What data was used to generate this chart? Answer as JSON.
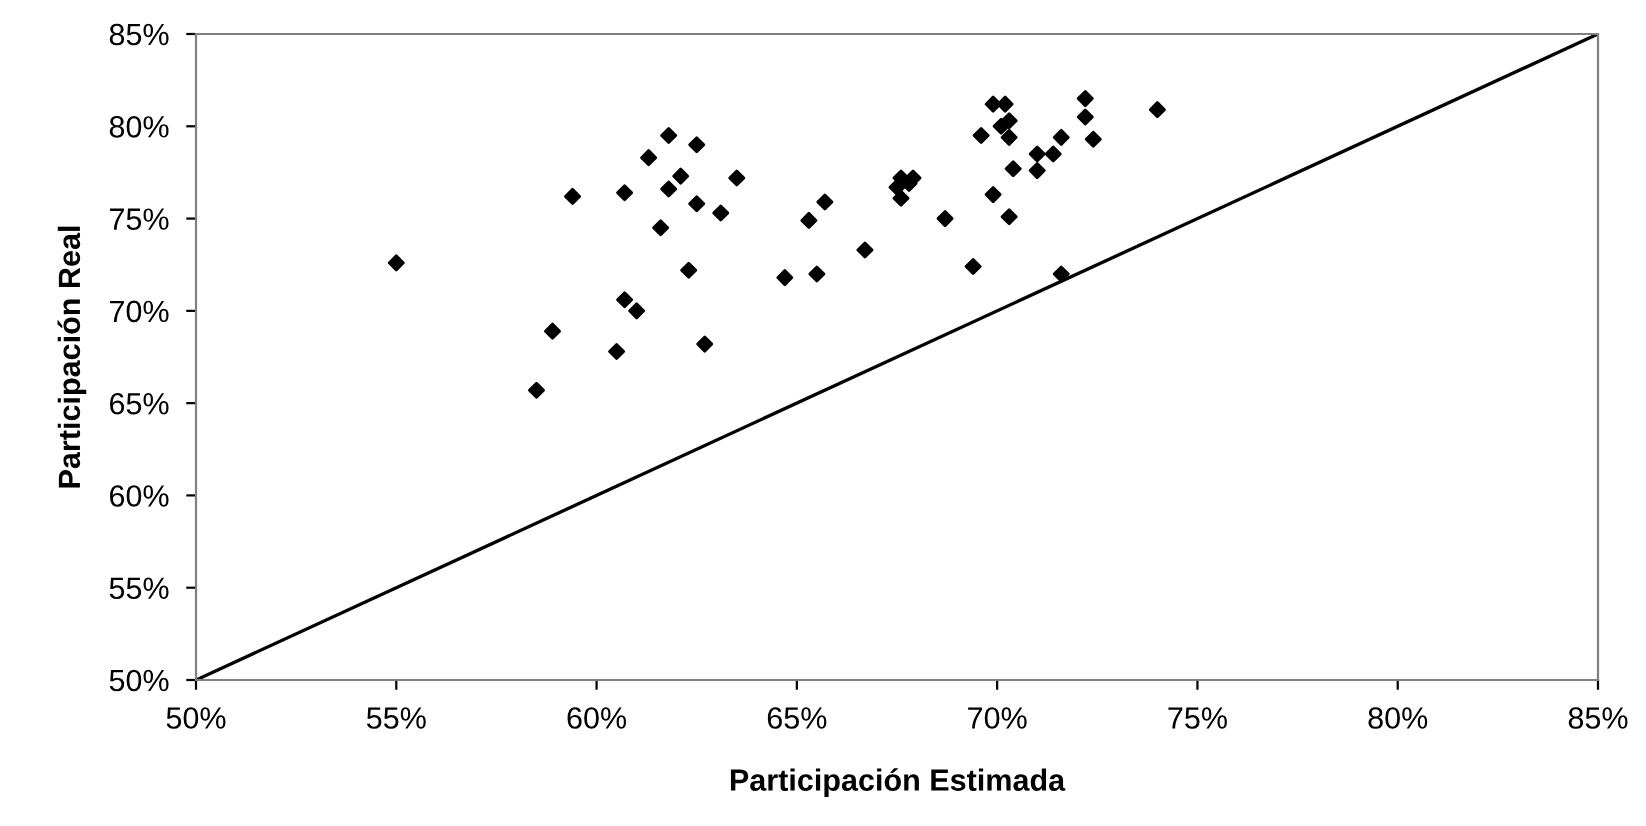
{
  "chart_data": {
    "type": "scatter",
    "xlabel": "Participación Estimada",
    "ylabel": "Participación Real",
    "xlim": [
      50,
      85
    ],
    "ylim": [
      50,
      85
    ],
    "xticks": [
      {
        "value": 50,
        "label": "50%"
      },
      {
        "value": 55,
        "label": "55%"
      },
      {
        "value": 60,
        "label": "60%"
      },
      {
        "value": 65,
        "label": "65%"
      },
      {
        "value": 70,
        "label": "70%"
      },
      {
        "value": 75,
        "label": "75%"
      },
      {
        "value": 80,
        "label": "80%"
      },
      {
        "value": 85,
        "label": "85%"
      }
    ],
    "yticks": [
      {
        "value": 50,
        "label": "50%"
      },
      {
        "value": 55,
        "label": "55%"
      },
      {
        "value": 60,
        "label": "60%"
      },
      {
        "value": 65,
        "label": "65%"
      },
      {
        "value": 70,
        "label": "70%"
      },
      {
        "value": 75,
        "label": "75%"
      },
      {
        "value": 80,
        "label": "80%"
      },
      {
        "value": 85,
        "label": "85%"
      }
    ],
    "grid": false,
    "marker": "diamond",
    "series": [
      {
        "color": "#000000",
        "x": [
          55.0,
          58.5,
          58.9,
          59.4,
          60.5,
          60.7,
          60.7,
          61.0,
          61.3,
          61.6,
          61.8,
          61.8,
          62.1,
          62.3,
          62.5,
          62.5,
          62.7,
          63.1,
          63.5,
          64.7,
          65.3,
          65.5,
          65.7,
          66.7,
          67.5,
          67.6,
          67.6,
          67.9,
          67.8,
          68.7,
          69.4,
          69.6,
          69.9,
          69.9,
          70.2,
          70.1,
          70.3,
          70.3,
          70.3,
          70.4,
          71.0,
          71.0,
          71.4,
          71.6,
          71.6,
          72.2,
          72.2,
          72.4,
          74.0
        ],
        "values": [
          72.6,
          65.7,
          68.9,
          76.2,
          67.8,
          76.4,
          70.6,
          70.0,
          78.3,
          74.5,
          76.6,
          79.5,
          77.3,
          72.2,
          75.8,
          79.0,
          68.2,
          75.3,
          77.2,
          71.8,
          74.9,
          72.0,
          75.9,
          73.3,
          76.7,
          77.2,
          76.1,
          77.2,
          76.9,
          75.0,
          72.4,
          79.5,
          76.3,
          81.2,
          81.2,
          80.0,
          80.3,
          79.4,
          75.1,
          77.7,
          78.5,
          77.6,
          78.5,
          79.4,
          72.0,
          81.5,
          80.5,
          79.3,
          80.9
        ]
      },
      {
        "type": "line",
        "color": "#000000",
        "marker": "none",
        "line_style": "solid",
        "x": [
          50,
          85
        ],
        "values": [
          50,
          85
        ]
      }
    ]
  }
}
